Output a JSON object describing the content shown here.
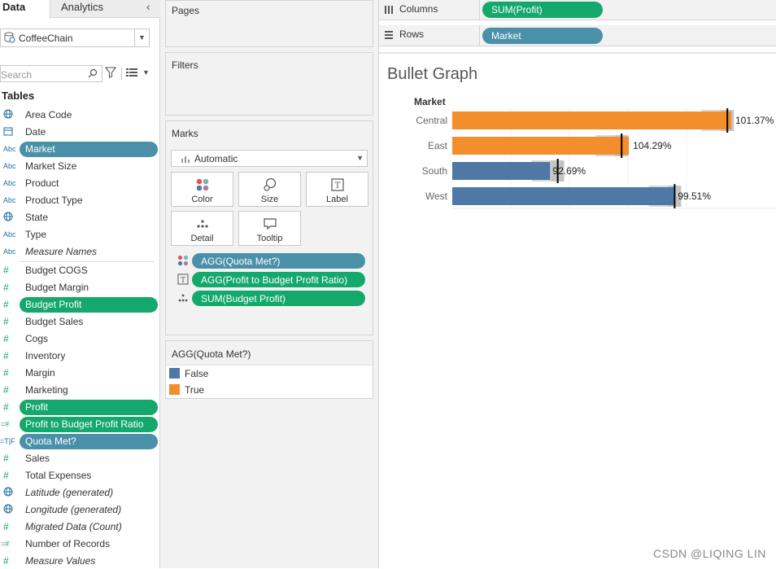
{
  "data_pane": {
    "tab_data": "Data",
    "tab_analytics": "Analytics",
    "datasource": "CoffeeChain",
    "search_placeholder": "Search",
    "tables_heading": "Tables",
    "fields": [
      {
        "icon": "globe",
        "label": "Area Code",
        "style": "plain"
      },
      {
        "icon": "calendar",
        "label": "Date",
        "style": "plain"
      },
      {
        "icon": "Abc",
        "label": "Market",
        "style": "blue-pill"
      },
      {
        "icon": "Abc",
        "label": "Market Size",
        "style": "plain"
      },
      {
        "icon": "Abc",
        "label": "Product",
        "style": "plain"
      },
      {
        "icon": "Abc",
        "label": "Product Type",
        "style": "plain"
      },
      {
        "icon": "globe",
        "label": "State",
        "style": "plain"
      },
      {
        "icon": "Abc",
        "label": "Type",
        "style": "plain"
      },
      {
        "icon": "Abc",
        "label": "Measure Names",
        "style": "italic"
      },
      {
        "icon": "#",
        "label": "Budget COGS",
        "style": "plain"
      },
      {
        "icon": "#",
        "label": "Budget Margin",
        "style": "plain"
      },
      {
        "icon": "#",
        "label": "Budget Profit",
        "style": "green-pill"
      },
      {
        "icon": "#",
        "label": "Budget Sales",
        "style": "plain"
      },
      {
        "icon": "#",
        "label": "Cogs",
        "style": "plain"
      },
      {
        "icon": "#",
        "label": "Inventory",
        "style": "plain"
      },
      {
        "icon": "#",
        "label": "Margin",
        "style": "plain"
      },
      {
        "icon": "#",
        "label": "Marketing",
        "style": "plain"
      },
      {
        "icon": "#",
        "label": "Profit",
        "style": "green-pill"
      },
      {
        "icon": "=#",
        "label": "Profit to Budget Profit Ratio",
        "style": "green-pill"
      },
      {
        "icon": "=T|F",
        "label": "Quota Met?",
        "style": "blue-pill"
      },
      {
        "icon": "#",
        "label": "Sales",
        "style": "plain"
      },
      {
        "icon": "#",
        "label": "Total Expenses",
        "style": "plain"
      },
      {
        "icon": "globe",
        "label": "Latitude (generated)",
        "style": "italic"
      },
      {
        "icon": "globe",
        "label": "Longitude (generated)",
        "style": "italic"
      },
      {
        "icon": "#",
        "label": "Migrated Data (Count)",
        "style": "italic"
      },
      {
        "icon": "=#",
        "label": "Number of Records",
        "style": "plain"
      },
      {
        "icon": "#",
        "label": "Measure Values",
        "style": "italic"
      }
    ]
  },
  "shelves_pane": {
    "pages_title": "Pages",
    "filters_title": "Filters",
    "marks_title": "Marks",
    "mark_type": "Automatic",
    "buttons": {
      "color": "Color",
      "size": "Size",
      "label": "Label",
      "detail": "Detail",
      "tooltip": "Tooltip"
    },
    "mark_pills": [
      {
        "type": "color",
        "label": "AGG(Quota Met?)",
        "color": "#4a90a8"
      },
      {
        "type": "label",
        "label": "AGG(Profit to Budget Profit Ratio)",
        "color": "#14a86c"
      },
      {
        "type": "detail",
        "label": "SUM(Budget Profit)",
        "color": "#14a86c"
      }
    ],
    "legend": {
      "title": "AGG(Quota Met?)",
      "items": [
        {
          "label": "False",
          "color": "#4e79a7"
        },
        {
          "label": "True",
          "color": "#f28e2b"
        }
      ]
    }
  },
  "view": {
    "columns_label": "Columns",
    "columns_pill": "SUM(Profit)",
    "rows_label": "Rows",
    "rows_pill": "Market",
    "sheet_title": "Bullet Graph",
    "axis_title": "Market"
  },
  "chart_data": {
    "type": "bar",
    "title": "Bullet Graph",
    "xlabel": "",
    "ylabel": "Market",
    "categories": [
      "Central",
      "East",
      "South",
      "West"
    ],
    "series": [
      {
        "values": [
          101.37,
          104.29,
          92.69,
          99.51
        ]
      }
    ],
    "data_labels": [
      "101.37%",
      "104.29%",
      "92.69%",
      "99.51%"
    ],
    "bar_fraction": [
      1.0,
      0.633,
      0.351,
      0.794
    ],
    "reference_fraction": [
      0.986,
      0.607,
      0.378,
      0.797
    ],
    "colors": [
      "#f28e2b",
      "#f28e2b",
      "#4e79a7",
      "#4e79a7"
    ],
    "grid": true
  },
  "watermark": "CSDN @LIQING LIN"
}
